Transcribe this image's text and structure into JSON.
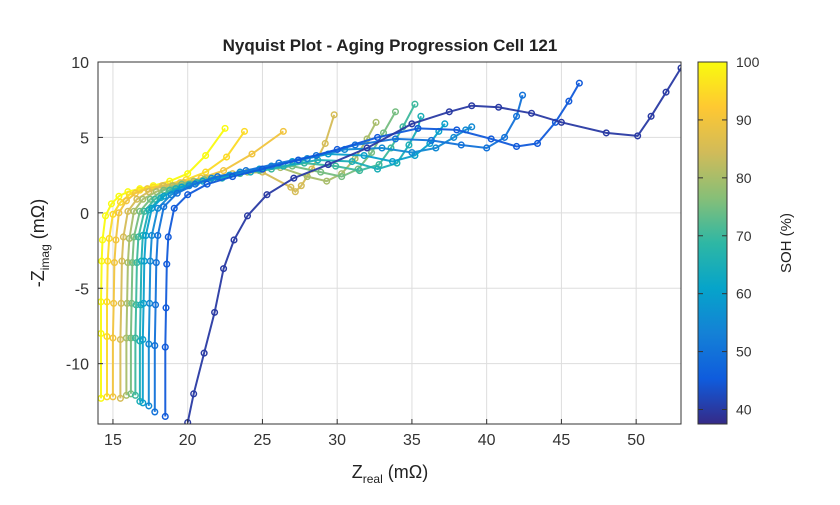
{
  "chart_data": {
    "type": "line",
    "title": "Nyquist Plot - Aging Progression Cell 121",
    "xlabel": {
      "main": "Z",
      "sub": "real",
      "unit": " (mΩ)"
    },
    "ylabel": {
      "main": "-Z",
      "sub": "imag",
      "unit": " (mΩ)"
    },
    "xlim": [
      14,
      53
    ],
    "ylim": [
      -14,
      10
    ],
    "xticks": [
      15,
      20,
      25,
      30,
      35,
      40,
      45,
      50
    ],
    "yticks": [
      10,
      5,
      0,
      -5,
      -10
    ],
    "grid": true,
    "marker": "open-circle",
    "colorbar": {
      "label": "SOH (%)",
      "range": [
        37.5,
        100
      ],
      "ticks": [
        100,
        90,
        80,
        70,
        60,
        50,
        40
      ],
      "colormap": "parula"
    },
    "series": [
      {
        "soh": 100,
        "x": [
          14.2,
          14.2,
          14.2,
          14.25,
          14.3,
          14.5,
          14.9,
          15.4,
          16.0,
          16.8,
          17.7,
          18.8,
          20.0,
          21.2,
          22.5
        ],
        "y": [
          -12.3,
          -8.0,
          -5.9,
          -3.2,
          -1.8,
          -0.2,
          0.6,
          1.1,
          1.4,
          1.6,
          1.8,
          2.1,
          2.6,
          3.8,
          5.6
        ]
      },
      {
        "soh": 95,
        "x": [
          14.6,
          14.6,
          14.6,
          14.65,
          14.75,
          15.0,
          15.5,
          16.1,
          16.8,
          17.7,
          18.7,
          19.9,
          21.2,
          22.6,
          23.8
        ],
        "y": [
          -12.2,
          -8.2,
          -5.9,
          -3.2,
          -1.7,
          -0.1,
          0.7,
          1.2,
          1.5,
          1.7,
          1.9,
          2.2,
          2.7,
          3.7,
          5.4
        ]
      },
      {
        "soh": 90,
        "x": [
          15.0,
          15.0,
          15.05,
          15.1,
          15.2,
          15.4,
          15.9,
          16.5,
          17.3,
          18.3,
          19.5,
          20.9,
          22.4,
          24.3,
          26.4
        ],
        "y": [
          -12.2,
          -8.3,
          -6.0,
          -3.3,
          -1.8,
          0.0,
          0.8,
          1.3,
          1.6,
          1.8,
          2.0,
          2.3,
          2.8,
          3.9,
          5.4
        ]
      },
      {
        "soh": 85,
        "x": [
          15.5,
          15.5,
          15.55,
          15.6,
          15.7,
          16.0,
          16.6,
          17.4,
          18.4,
          19.7,
          21.2,
          23.0,
          25.0,
          26.9,
          27.2,
          27.6,
          28.3,
          29.2,
          29.8
        ],
        "y": [
          -12.3,
          -8.4,
          -6.0,
          -3.2,
          -1.6,
          0.1,
          0.9,
          1.4,
          1.8,
          2.0,
          2.3,
          2.6,
          2.7,
          1.7,
          1.4,
          1.8,
          2.9,
          4.6,
          6.5
        ]
      },
      {
        "soh": 80,
        "x": [
          15.9,
          15.9,
          15.95,
          16.0,
          16.1,
          16.4,
          17.0,
          17.9,
          19.0,
          20.4,
          22.0,
          24.0,
          26.2,
          28.0,
          29.3,
          30.3,
          31.2,
          32.0,
          32.6
        ],
        "y": [
          -12.1,
          -8.3,
          -6.0,
          -3.3,
          -1.7,
          0.1,
          0.9,
          1.4,
          1.8,
          2.1,
          2.4,
          2.7,
          3.0,
          2.4,
          2.1,
          2.6,
          3.6,
          4.9,
          6.0
        ]
      },
      {
        "soh": 75,
        "x": [
          16.2,
          16.2,
          16.25,
          16.3,
          16.4,
          16.8,
          17.5,
          18.4,
          19.6,
          21.1,
          22.8,
          24.8,
          27.0,
          28.9,
          30.3,
          31.4,
          32.3,
          33.1,
          33.9
        ],
        "y": [
          -12.0,
          -8.3,
          -6.0,
          -3.3,
          -1.6,
          0.1,
          0.9,
          1.5,
          1.9,
          2.2,
          2.5,
          2.8,
          3.1,
          2.7,
          2.4,
          2.9,
          4.0,
          5.3,
          6.7
        ]
      },
      {
        "soh": 70,
        "x": [
          16.5,
          16.5,
          16.55,
          16.6,
          16.7,
          17.1,
          17.8,
          18.8,
          20.1,
          21.7,
          23.5,
          25.6,
          27.8,
          29.9,
          31.5,
          32.8,
          33.6,
          34.4,
          35.2
        ],
        "y": [
          -12.1,
          -8.3,
          -6.1,
          -3.3,
          -1.6,
          0.1,
          0.9,
          1.5,
          1.9,
          2.2,
          2.6,
          2.9,
          3.3,
          3.1,
          2.8,
          3.2,
          4.3,
          5.7,
          7.2
        ]
      },
      {
        "soh": 65,
        "x": [
          16.8,
          16.8,
          16.85,
          16.9,
          17.0,
          17.4,
          18.2,
          19.2,
          20.6,
          22.3,
          24.2,
          26.4,
          28.7,
          31.0,
          32.7,
          34.0,
          34.8,
          35.4,
          35.6
        ],
        "y": [
          -12.5,
          -8.5,
          -6.1,
          -3.2,
          -1.5,
          0.2,
          1.0,
          1.6,
          2.0,
          2.3,
          2.7,
          3.1,
          3.5,
          3.4,
          2.9,
          3.3,
          4.5,
          5.6,
          6.4
        ]
      },
      {
        "soh": 60,
        "x": [
          17.0,
          17.0,
          17.05,
          17.1,
          17.2,
          17.6,
          18.4,
          19.6,
          21.0,
          22.8,
          24.8,
          27.0,
          29.4,
          31.8,
          33.7,
          35.2,
          36.2,
          36.8,
          37.2
        ],
        "y": [
          -12.6,
          -8.4,
          -6.0,
          -3.2,
          -1.5,
          0.3,
          1.1,
          1.7,
          2.1,
          2.5,
          2.9,
          3.4,
          3.9,
          3.8,
          3.4,
          3.8,
          4.6,
          5.4,
          5.9
        ]
      },
      {
        "soh": 55,
        "x": [
          17.4,
          17.4,
          17.45,
          17.5,
          17.6,
          18.0,
          18.9,
          20.1,
          21.6,
          23.5,
          25.6,
          28.0,
          30.5,
          33.0,
          35.0,
          36.6,
          37.8,
          38.6,
          39.0
        ],
        "y": [
          -12.8,
          -8.7,
          -6.0,
          -3.2,
          -1.5,
          0.3,
          1.2,
          1.8,
          2.3,
          2.7,
          3.1,
          3.6,
          4.2,
          4.3,
          4.0,
          4.3,
          5.0,
          5.5,
          5.7
        ]
      },
      {
        "soh": 50,
        "x": [
          17.8,
          17.8,
          17.85,
          17.9,
          18.0,
          18.4,
          19.3,
          20.5,
          22.0,
          23.9,
          26.1,
          28.6,
          31.2,
          33.9,
          36.3,
          38.3,
          40.0,
          41.2,
          42.0,
          42.4
        ],
        "y": [
          -13.2,
          -8.8,
          -6.1,
          -3.3,
          -1.5,
          0.4,
          1.3,
          1.9,
          2.4,
          2.8,
          3.3,
          3.8,
          4.5,
          4.9,
          4.8,
          4.5,
          4.3,
          5.0,
          6.4,
          7.8
        ]
      },
      {
        "soh": 45,
        "x": [
          18.5,
          18.5,
          18.55,
          18.6,
          18.7,
          19.1,
          20.0,
          21.3,
          23.0,
          25.0,
          27.4,
          30.0,
          32.7,
          35.4,
          38.0,
          40.3,
          42.0,
          43.4,
          44.6,
          45.5,
          46.2
        ],
        "y": [
          -13.5,
          -8.9,
          -6.3,
          -3.4,
          -1.6,
          0.3,
          1.2,
          1.9,
          2.4,
          2.9,
          3.5,
          4.2,
          5.0,
          5.6,
          5.5,
          4.9,
          4.4,
          4.6,
          6.0,
          7.4,
          8.6
        ]
      },
      {
        "soh": 40,
        "x": [
          20.0,
          20.4,
          21.1,
          21.8,
          22.4,
          23.1,
          24.0,
          25.3,
          27.1,
          29.4,
          32.0,
          35.0,
          37.5,
          39.0,
          40.8,
          43.0,
          45.0,
          48.0,
          50.1,
          51.0,
          52.0,
          53.0
        ],
        "y": [
          -13.9,
          -12.0,
          -9.3,
          -6.6,
          -3.7,
          -1.8,
          -0.2,
          1.2,
          2.3,
          3.2,
          4.3,
          5.9,
          6.7,
          7.1,
          7.0,
          6.6,
          6.0,
          5.3,
          5.1,
          6.4,
          8.0,
          9.6
        ]
      }
    ]
  }
}
